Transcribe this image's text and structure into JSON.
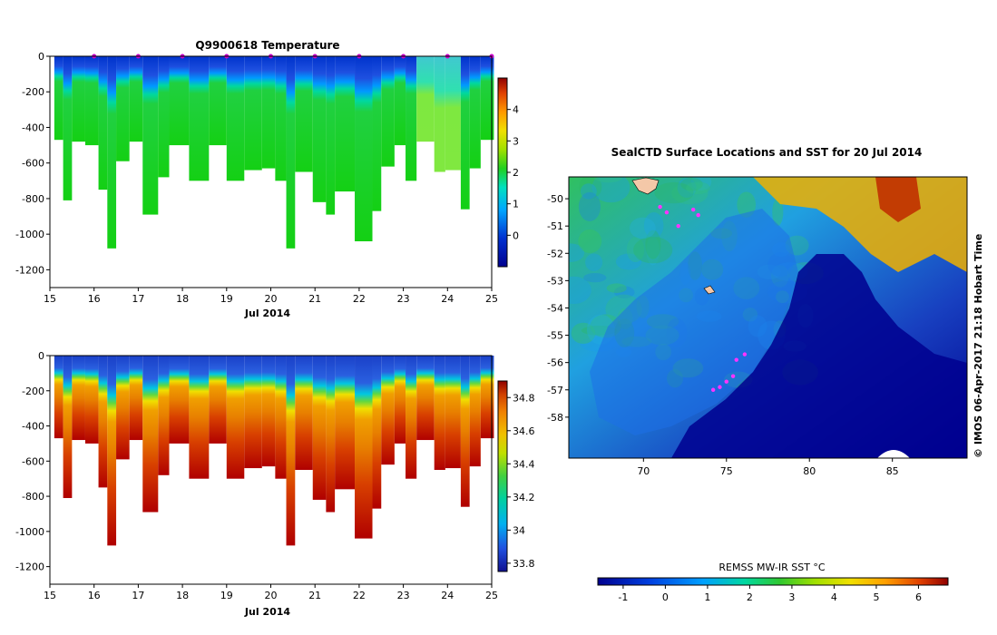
{
  "chart_data": [
    {
      "type": "heatmap",
      "title": "Q9900618  Temperature",
      "xlabel": "Jul 2014",
      "x_ticks": [
        "15",
        "16",
        "17",
        "18",
        "19",
        "20",
        "21",
        "22",
        "23",
        "24",
        "25"
      ],
      "xlim": [
        15,
        25
      ],
      "y_ticks": [
        "0",
        "-200",
        "-400",
        "-600",
        "-800",
        "-1000",
        "-1200"
      ],
      "ylim": [
        -1300,
        0
      ],
      "colorbar": {
        "ticks": [
          "0",
          "1",
          "2",
          "3",
          "4"
        ],
        "range": [
          -1,
          5
        ]
      },
      "profile_markers_day": [
        16,
        17,
        18,
        19,
        20,
        21,
        22,
        23,
        24,
        25
      ],
      "profiles": [
        {
          "x0": 15.1,
          "x1": 15.3,
          "depth": 470
        },
        {
          "x0": 15.3,
          "x1": 15.5,
          "depth": 810
        },
        {
          "x0": 15.5,
          "x1": 15.8,
          "depth": 480
        },
        {
          "x0": 15.8,
          "x1": 16.1,
          "depth": 500
        },
        {
          "x0": 16.1,
          "x1": 16.3,
          "depth": 750
        },
        {
          "x0": 16.3,
          "x1": 16.5,
          "depth": 1080
        },
        {
          "x0": 16.5,
          "x1": 16.8,
          "depth": 590
        },
        {
          "x0": 16.8,
          "x1": 17.1,
          "depth": 480
        },
        {
          "x0": 17.1,
          "x1": 17.45,
          "depth": 890
        },
        {
          "x0": 17.45,
          "x1": 17.7,
          "depth": 680
        },
        {
          "x0": 17.7,
          "x1": 18.15,
          "depth": 500
        },
        {
          "x0": 18.15,
          "x1": 18.6,
          "depth": 700
        },
        {
          "x0": 18.6,
          "x1": 19.0,
          "depth": 500
        },
        {
          "x0": 19.0,
          "x1": 19.4,
          "depth": 700
        },
        {
          "x0": 19.4,
          "x1": 19.8,
          "depth": 640
        },
        {
          "x0": 19.8,
          "x1": 20.1,
          "depth": 630
        },
        {
          "x0": 20.1,
          "x1": 20.35,
          "depth": 700
        },
        {
          "x0": 20.35,
          "x1": 20.55,
          "depth": 1080
        },
        {
          "x0": 20.55,
          "x1": 20.95,
          "depth": 650
        },
        {
          "x0": 20.95,
          "x1": 21.25,
          "depth": 820
        },
        {
          "x0": 21.25,
          "x1": 21.45,
          "depth": 890
        },
        {
          "x0": 21.45,
          "x1": 21.9,
          "depth": 760
        },
        {
          "x0": 21.9,
          "x1": 22.3,
          "depth": 1040
        },
        {
          "x0": 22.3,
          "x1": 22.5,
          "depth": 870
        },
        {
          "x0": 22.5,
          "x1": 22.8,
          "depth": 620
        },
        {
          "x0": 22.8,
          "x1": 23.05,
          "depth": 500
        },
        {
          "x0": 23.05,
          "x1": 23.3,
          "depth": 700
        },
        {
          "x0": 23.3,
          "x1": 23.7,
          "depth": 480
        },
        {
          "x0": 23.7,
          "x1": 23.95,
          "depth": 650
        },
        {
          "x0": 23.95,
          "x1": 24.3,
          "depth": 640
        },
        {
          "x0": 24.3,
          "x1": 24.5,
          "depth": 860
        },
        {
          "x0": 24.5,
          "x1": 24.75,
          "depth": 630
        },
        {
          "x0": 24.75,
          "x1": 25.05,
          "depth": 470
        }
      ]
    },
    {
      "type": "heatmap",
      "title": "",
      "xlabel": "Jul 2014",
      "x_ticks": [
        "15",
        "16",
        "17",
        "18",
        "19",
        "20",
        "21",
        "22",
        "23",
        "24",
        "25"
      ],
      "xlim": [
        15,
        25
      ],
      "y_ticks": [
        "0",
        "-200",
        "-400",
        "-600",
        "-800",
        "-1000",
        "-1200"
      ],
      "ylim": [
        -1300,
        0
      ],
      "colorbar": {
        "ticks": [
          "33.8",
          "34",
          "34.2",
          "34.4",
          "34.6",
          "34.8"
        ],
        "range": [
          33.75,
          34.9
        ]
      },
      "uses_profiles_of": 0
    },
    {
      "type": "heatmap",
      "title": "SealCTD Surface Locations and SST for 20 Jul 2014",
      "x_ticks": [
        "70",
        "75",
        "80",
        "85"
      ],
      "xlim": [
        65.5,
        89.5
      ],
      "y_ticks": [
        "-50",
        "-51",
        "-52",
        "-53",
        "-54",
        "-55",
        "-56",
        "-57",
        "-58"
      ],
      "ylim": [
        -59.5,
        -49.2
      ],
      "colorbar_label": "REMSS MW-IR SST °C",
      "colorbar": {
        "ticks": [
          "-1",
          "0",
          "1",
          "2",
          "3",
          "4",
          "5",
          "6"
        ],
        "range": [
          -1.6,
          6.7
        ]
      },
      "seal_surface_locations": [
        {
          "lon": 71.0,
          "lat": -50.3
        },
        {
          "lon": 71.4,
          "lat": -50.5
        },
        {
          "lon": 73.0,
          "lat": -50.4
        },
        {
          "lon": 72.1,
          "lat": -51.0
        },
        {
          "lon": 73.3,
          "lat": -50.6
        },
        {
          "lon": 76.1,
          "lat": -55.7
        },
        {
          "lon": 75.6,
          "lat": -55.9
        },
        {
          "lon": 75.4,
          "lat": -56.5
        },
        {
          "lon": 75.0,
          "lat": -56.7
        },
        {
          "lon": 74.6,
          "lat": -56.9
        },
        {
          "lon": 74.2,
          "lat": -57.0
        }
      ]
    }
  ],
  "annotations": {
    "copyright": "© IMOS 06-Apr-2017 21:18 Hobart Time"
  },
  "colors": {
    "background": "#ffffff",
    "marker": "#cc00cc",
    "track": "#ff33ff"
  }
}
